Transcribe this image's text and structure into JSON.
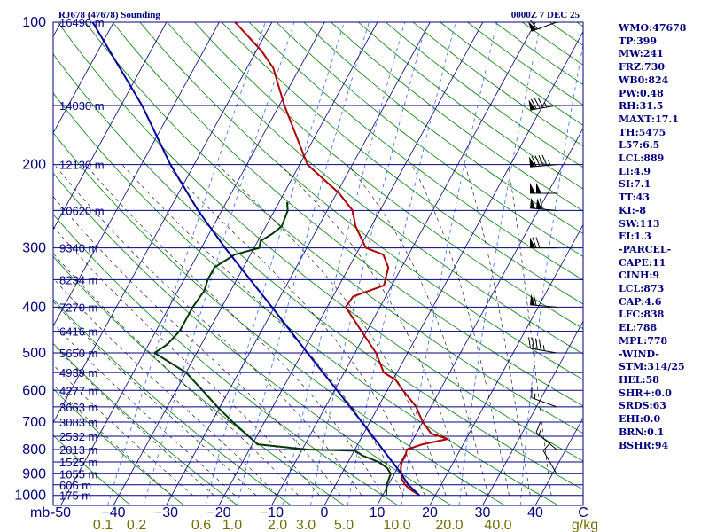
{
  "chart_data": {
    "type": "line",
    "title": "RJ678 (47678) Sounding",
    "time_label": "0000Z  7 DEC 25",
    "y_axis": {
      "scale": "log-pressure",
      "range_hpa": [
        1050,
        100
      ],
      "ticks": [
        "100",
        "200",
        "300",
        "400",
        "500",
        "600",
        "700",
        "800",
        "900",
        "1000"
      ],
      "unit_label": "mb"
    },
    "x_axis": {
      "range_c": [
        -50,
        50
      ],
      "ticks": [
        "-50",
        "−40",
        "−30",
        "−20",
        "−10",
        "0",
        "10",
        "20",
        "30",
        "40",
        "C"
      ]
    },
    "mixing_ratio_labels": [
      "0.1",
      "0.2",
      "0.6",
      "1.0",
      "2.0",
      "3.0",
      "5.0",
      "10.0",
      "20.0",
      "40.0",
      "g/kg"
    ],
    "height_labels": [
      {
        "p": 100,
        "label": "16490 m"
      },
      {
        "p": 150,
        "label": "14030 m"
      },
      {
        "p": 200,
        "label": "12130 m"
      },
      {
        "p": 250,
        "label": "10620 m"
      },
      {
        "p": 300,
        "label": "9340 m"
      },
      {
        "p": 350,
        "label": "8234 m"
      },
      {
        "p": 400,
        "label": "7270 m"
      },
      {
        "p": 450,
        "label": "6416 m"
      },
      {
        "p": 500,
        "label": "5650 m"
      },
      {
        "p": 550,
        "label": "4939 m"
      },
      {
        "p": 600,
        "label": "4277 m"
      },
      {
        "p": 650,
        "label": "3663 m"
      },
      {
        "p": 700,
        "label": "3083 m"
      },
      {
        "p": 750,
        "label": "2532 m"
      },
      {
        "p": 800,
        "label": "2013 m"
      },
      {
        "p": 850,
        "label": "1525 m"
      },
      {
        "p": 900,
        "label": "1055 m"
      },
      {
        "p": 950,
        "label": "606 m"
      },
      {
        "p": 1000,
        "label": "175 m"
      }
    ],
    "series": [
      {
        "role": "temperature",
        "color": "#b00000",
        "points": [
          [
            1000,
            17.0
          ],
          [
            970,
            14.5
          ],
          [
            950,
            13.2
          ],
          [
            925,
            12.0
          ],
          [
            900,
            11.3
          ],
          [
            875,
            10.6
          ],
          [
            850,
            10.2
          ],
          [
            820,
            10.2
          ],
          [
            800,
            9.8
          ],
          [
            780,
            12.3
          ],
          [
            760,
            16.5
          ],
          [
            740,
            12.8
          ],
          [
            700,
            10.0
          ],
          [
            650,
            7.2
          ],
          [
            600,
            3.0
          ],
          [
            570,
            0.5
          ],
          [
            550,
            -2.5
          ],
          [
            500,
            -6.0
          ],
          [
            450,
            -11.0
          ],
          [
            400,
            -16.5
          ],
          [
            380,
            -16.2
          ],
          [
            360,
            -11.5
          ],
          [
            330,
            -12.5
          ],
          [
            310,
            -14.8
          ],
          [
            300,
            -18.8
          ],
          [
            270,
            -23.0
          ],
          [
            250,
            -25.2
          ],
          [
            230,
            -29.5
          ],
          [
            200,
            -38.5
          ],
          [
            150,
            -49.0
          ],
          [
            125,
            -55.0
          ],
          [
            115,
            -59.0
          ],
          [
            100,
            -67.0
          ]
        ]
      },
      {
        "role": "dewpoint",
        "color": "#003800",
        "points": [
          [
            1000,
            10.7
          ],
          [
            950,
            9.7
          ],
          [
            900,
            9.3
          ],
          [
            875,
            8.0
          ],
          [
            850,
            5.8
          ],
          [
            825,
            2.2
          ],
          [
            805,
            0.2
          ],
          [
            800,
            -9.0
          ],
          [
            780,
            -19.0
          ],
          [
            700,
            -26.0
          ],
          [
            650,
            -30.5
          ],
          [
            600,
            -35.0
          ],
          [
            550,
            -40.0
          ],
          [
            500,
            -48.0
          ],
          [
            480,
            -46.5
          ],
          [
            450,
            -45.5
          ],
          [
            400,
            -45.5
          ],
          [
            370,
            -45.0
          ],
          [
            350,
            -45.5
          ],
          [
            330,
            -45.5
          ],
          [
            310,
            -43.0
          ],
          [
            300,
            -39.0
          ],
          [
            290,
            -39.5
          ],
          [
            280,
            -38.0
          ],
          [
            270,
            -37.0
          ],
          [
            250,
            -37.5
          ],
          [
            240,
            -38.5
          ]
        ]
      },
      {
        "role": "parcel",
        "color": "#0000a0",
        "points": [
          [
            1000,
            17.0
          ],
          [
            950,
            13.8
          ],
          [
            889,
            10.7
          ],
          [
            850,
            8.4
          ],
          [
            800,
            5.3
          ],
          [
            700,
            -1.5
          ],
          [
            600,
            -9.5
          ],
          [
            500,
            -19.0
          ],
          [
            400,
            -30.5
          ],
          [
            300,
            -45.5
          ],
          [
            250,
            -54.5
          ],
          [
            200,
            -64.5
          ],
          [
            150,
            -76.0
          ],
          [
            100,
            -94.0
          ]
        ]
      }
    ],
    "wind_barbs": [
      {
        "p": 100,
        "dir": 250,
        "spd": 60
      },
      {
        "p": 150,
        "dir": 260,
        "spd": 85
      },
      {
        "p": 200,
        "dir": 265,
        "spd": 95
      },
      {
        "p": 230,
        "dir": 270,
        "spd": 100
      },
      {
        "p": 250,
        "dir": 275,
        "spd": 110
      },
      {
        "p": 300,
        "dir": 270,
        "spd": 70
      },
      {
        "p": 400,
        "dir": 275,
        "spd": 60
      },
      {
        "p": 500,
        "dir": 280,
        "spd": 45
      },
      {
        "p": 650,
        "dir": 290,
        "spd": 15
      },
      {
        "p": 800,
        "dir": 310,
        "spd": 15
      },
      {
        "p": 900,
        "dir": 330,
        "spd": 10
      }
    ],
    "colors": {
      "isobar": "#000080",
      "dry_adiabat": "#008000",
      "moist_adiabat": "#000000",
      "mixing_ratio": "#3366ff",
      "temperature": "#b00000",
      "dewpoint": "#003800",
      "parcel": "#0000a0",
      "wind": "#000000",
      "mixing_label": "#707000",
      "text": "#000080"
    }
  },
  "indices": [
    "WMO:47678",
    "TP:399",
    "MW:241",
    "FRZ:730",
    "WB0:824",
    "PW:0.48",
    "RH:31.5",
    "MAXT:17.1",
    "TH:5475",
    "L57:6.5",
    "LCL:889",
    "LI:4.9",
    "SI:7.1",
    "TT:43",
    "KI:-8",
    "SW:113",
    "EI:1.3",
    "-PARCEL-",
    "CAPE:11",
    "CINH:9",
    "LCL:873",
    "CAP:4.6",
    "LFC:838",
    "EL:788",
    "MPL:778",
    "-WIND-",
    "STM:314/25",
    "HEL:58",
    "SHR+:0.0",
    "SRDS:63",
    "EHI:0.0",
    "BRN:0.1",
    "BSHR:94"
  ]
}
